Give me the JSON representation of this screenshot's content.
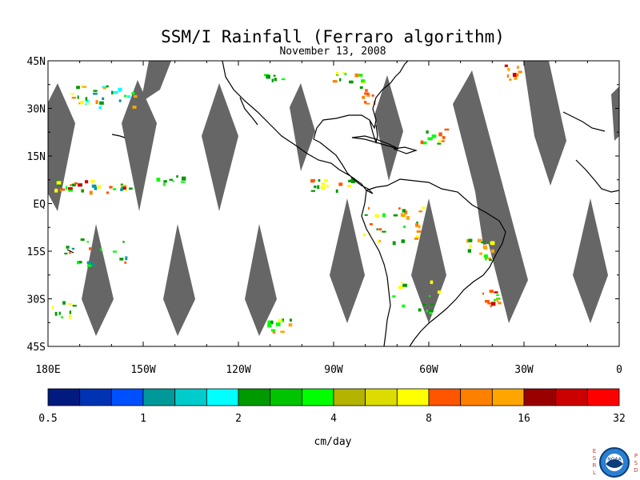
{
  "title": "SSM/I Rainfall (Ferraro algorithm)",
  "subtitle": "November 13, 2008",
  "lat_ticks": [
    "45N",
    "30N",
    "15N",
    "EQ",
    "15S",
    "30S",
    "45S"
  ],
  "lon_ticks": [
    "180E",
    "150W",
    "120W",
    "90W",
    "60W",
    "30W",
    "0"
  ],
  "colorbar": {
    "colors": [
      "#001a80",
      "#0033b3",
      "#0050ff",
      "#009999",
      "#00cccc",
      "#00ffff",
      "#009900",
      "#00c400",
      "#00ff00",
      "#b3b300",
      "#dcdc00",
      "#ffff00",
      "#ff5500",
      "#ff8000",
      "#ffa500",
      "#990000",
      "#cc0000",
      "#ff0000"
    ],
    "labels": [
      "0.5",
      "1",
      "2",
      "4",
      "8",
      "16",
      "32"
    ],
    "unit": "cm/day"
  },
  "logo": {
    "left_text": "ESRL",
    "right_text": "PSD",
    "center_text": "NOAA"
  },
  "colors": {
    "swath_gap": "#666666",
    "frame": "#000000",
    "coast": "#000000"
  }
}
